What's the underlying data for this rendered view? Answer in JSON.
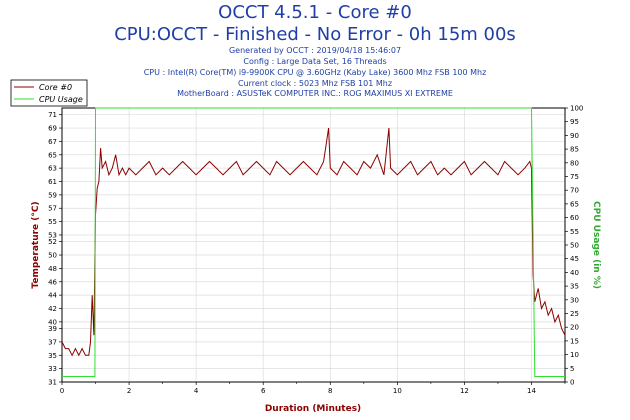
{
  "header": {
    "title_line1": "OCCT 4.5.1 - Core #0",
    "title_line2": "CPU:OCCT - Finished - No Error - 0h 15m 00s",
    "info": [
      "Generated by OCCT : 2019/04/18 15:46:07",
      "Config : Large Data Set, 16 Threads",
      "CPU : Intel(R) Core(TM) i9-9900K CPU @ 3.60GHz (Kaby Lake) 3600 Mhz FSB 100 Mhz",
      "Current clock : 5023 Mhz FSB 101 Mhz",
      "MotherBoard : ASUSTeK COMPUTER INC.: ROG MAXIMUS XI EXTREME"
    ]
  },
  "chart_data": {
    "type": "line",
    "xlabel": "Duration (Minutes)",
    "ylabel_left": "Temperature (°C)",
    "ylabel_right": "CPU Usage (in %)",
    "xlim": [
      0,
      15
    ],
    "ylim_left": [
      31,
      72
    ],
    "ylim_right": [
      0,
      100
    ],
    "x_ticks": [
      0,
      2,
      4,
      6,
      8,
      10,
      12,
      14
    ],
    "y_left_ticks": [
      31,
      33,
      35,
      37,
      39,
      40,
      42,
      44,
      46,
      48,
      50,
      52,
      53,
      55,
      57,
      59,
      61,
      63,
      65,
      67,
      69,
      71
    ],
    "y_right_ticks": [
      0,
      5,
      10,
      15,
      20,
      25,
      30,
      35,
      40,
      45,
      50,
      55,
      60,
      65,
      70,
      75,
      80,
      85,
      90,
      95,
      100
    ],
    "grid": true,
    "legend_position": "top-left",
    "colors": {
      "core": "#8b0000",
      "usage": "#33dd33",
      "title": "#1f3fa6"
    },
    "series": [
      {
        "name": "Core #0",
        "axis": "left",
        "x": [
          0,
          0.1,
          0.2,
          0.3,
          0.4,
          0.5,
          0.6,
          0.7,
          0.8,
          0.85,
          0.9,
          0.95,
          1.0,
          1.05,
          1.1,
          1.15,
          1.2,
          1.3,
          1.4,
          1.5,
          1.6,
          1.7,
          1.8,
          1.9,
          2.0,
          2.2,
          2.4,
          2.6,
          2.8,
          3.0,
          3.2,
          3.4,
          3.6,
          3.8,
          4.0,
          4.2,
          4.4,
          4.6,
          4.8,
          5.0,
          5.2,
          5.4,
          5.6,
          5.8,
          6.0,
          6.2,
          6.4,
          6.6,
          6.8,
          7.0,
          7.2,
          7.4,
          7.6,
          7.8,
          7.95,
          8.0,
          8.2,
          8.4,
          8.6,
          8.8,
          9.0,
          9.2,
          9.4,
          9.6,
          9.75,
          9.8,
          10.0,
          10.2,
          10.4,
          10.6,
          10.8,
          11.0,
          11.2,
          11.4,
          11.6,
          11.8,
          12.0,
          12.2,
          12.4,
          12.6,
          12.8,
          13.0,
          13.2,
          13.4,
          13.6,
          13.8,
          13.95,
          14.0,
          14.05,
          14.1,
          14.2,
          14.3,
          14.4,
          14.5,
          14.6,
          14.7,
          14.8,
          14.9,
          15.0
        ],
        "values": [
          37,
          36,
          36,
          35,
          36,
          35,
          36,
          35,
          35,
          37,
          44,
          38,
          56,
          60,
          61,
          66,
          63,
          64,
          62,
          63,
          65,
          62,
          63,
          62,
          63,
          62,
          63,
          64,
          62,
          63,
          62,
          63,
          64,
          63,
          62,
          63,
          64,
          63,
          62,
          63,
          64,
          62,
          63,
          64,
          63,
          62,
          64,
          63,
          62,
          63,
          64,
          63,
          62,
          64,
          69,
          63,
          62,
          64,
          63,
          62,
          64,
          63,
          65,
          62,
          69,
          63,
          62,
          63,
          64,
          62,
          63,
          64,
          62,
          63,
          62,
          63,
          64,
          62,
          63,
          64,
          63,
          62,
          64,
          63,
          62,
          63,
          64,
          63,
          47,
          43,
          45,
          42,
          43,
          41,
          42,
          40,
          41,
          39,
          38
        ]
      },
      {
        "name": "CPU Usage",
        "axis": "right",
        "x": [
          0,
          0.9,
          0.98,
          1.0,
          13.95,
          14.0,
          14.1,
          15.0
        ],
        "values": [
          2,
          2,
          2,
          100,
          100,
          100,
          2,
          2
        ]
      }
    ]
  }
}
